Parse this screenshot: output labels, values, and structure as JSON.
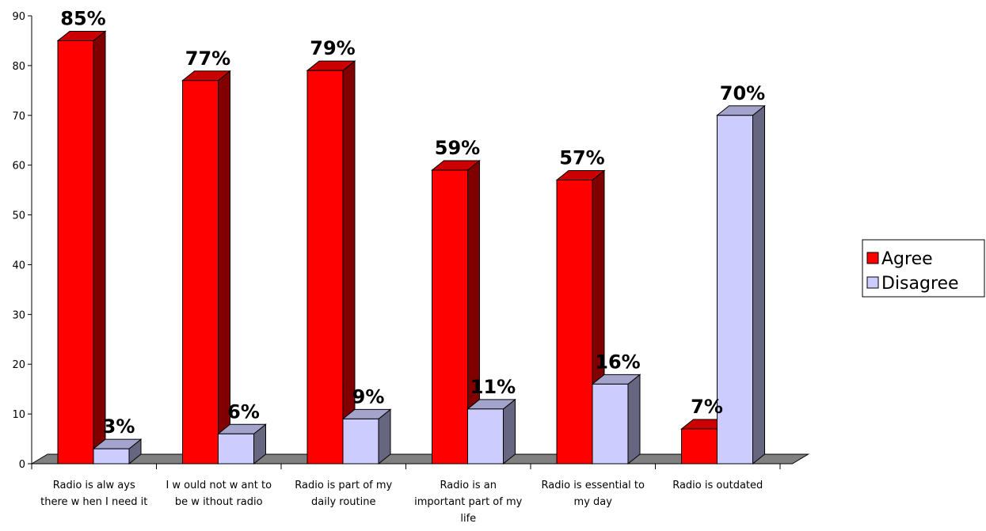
{
  "chart_data": {
    "type": "bar",
    "categories": [
      [
        "Radio is alw ays",
        "there w hen I need it"
      ],
      [
        "I w ould not w ant to",
        "be w ithout radio"
      ],
      [
        "Radio is part of my",
        "daily routine"
      ],
      [
        "Radio is an",
        "important part of my",
        "life"
      ],
      [
        "Radio is essential to",
        "my day"
      ],
      [
        "Radio is outdated"
      ]
    ],
    "series": [
      {
        "name": "Agree",
        "values": [
          85,
          77,
          79,
          59,
          57,
          7
        ],
        "labels": [
          "85%",
          "77%",
          "79%",
          "59%",
          "57%",
          "7%"
        ],
        "color": "#ff0000",
        "side_color": "#800000",
        "top_color": "#cc0000"
      },
      {
        "name": "Disagree",
        "values": [
          3,
          6,
          9,
          11,
          16,
          70
        ],
        "labels": [
          "3%",
          "6%",
          "9%",
          "11%",
          "16%",
          "70%"
        ],
        "color": "#ccccff",
        "side_color": "#666680",
        "top_color": "#a3a3cc"
      }
    ],
    "yticks": [
      0,
      10,
      20,
      30,
      40,
      50,
      60,
      70,
      80,
      90
    ],
    "ylim": [
      0,
      90
    ],
    "grid": false,
    "legend_position": "right"
  }
}
